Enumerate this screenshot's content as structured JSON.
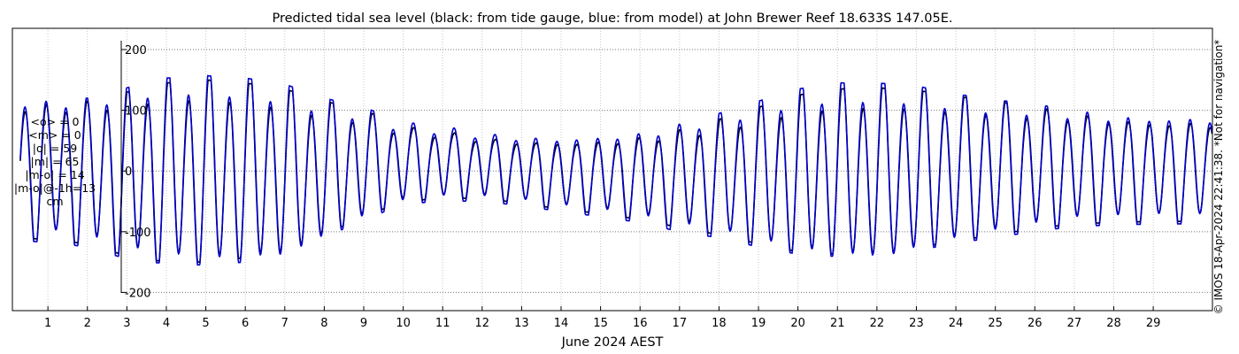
{
  "chart_data": {
    "type": "line",
    "title": "Predicted tidal sea level (black: from tide gauge, blue: from model) at John Brewer Reef 18.633S 147.05E.",
    "xlabel": "June 2024 AEST",
    "ylabel": "",
    "ylim": [
      -230,
      235
    ],
    "xlim": [
      0.1,
      30.5
    ],
    "y_ticks": [
      -200,
      -100,
      0,
      100,
      200
    ],
    "x_ticks": [
      1,
      2,
      3,
      4,
      5,
      6,
      7,
      8,
      9,
      10,
      11,
      12,
      13,
      14,
      15,
      16,
      17,
      18,
      19,
      20,
      21,
      22,
      23,
      24,
      25,
      26,
      27,
      28,
      29
    ],
    "grid": true,
    "series": [
      {
        "name": "black: from tide gauge",
        "color": "#000000"
      },
      {
        "name": "blue: from model",
        "color": "#0000cc"
      }
    ],
    "daily_tidal_range": {
      "day": [
        0.3,
        1,
        2,
        3,
        4,
        5,
        6,
        7,
        8,
        9,
        10,
        11,
        12,
        13,
        14,
        15,
        16,
        17,
        18,
        19,
        20,
        21,
        22,
        23,
        24,
        25,
        26,
        27,
        28,
        29,
        30.5
      ],
      "gauge_max": [
        105,
        108,
        110,
        125,
        140,
        145,
        140,
        130,
        110,
        95,
        70,
        65,
        55,
        50,
        48,
        50,
        55,
        65,
        80,
        100,
        120,
        130,
        132,
        128,
        118,
        110,
        100,
        92,
        85,
        80,
        80
      ],
      "gauge_min": [
        -105,
        -108,
        -115,
        -135,
        -145,
        -145,
        -138,
        -125,
        -100,
        -70,
        -45,
        -40,
        -40,
        -48,
        -58,
        -65,
        -75,
        -88,
        -100,
        -115,
        -128,
        -132,
        -130,
        -122,
        -110,
        -100,
        -90,
        -82,
        -80,
        -78,
        -78
      ],
      "model_max": [
        110,
        112,
        115,
        132,
        148,
        152,
        148,
        138,
        115,
        100,
        75,
        70,
        60,
        55,
        52,
        55,
        60,
        72,
        90,
        110,
        130,
        140,
        140,
        135,
        122,
        112,
        105,
        95,
        88,
        85,
        85
      ],
      "model_min": [
        -110,
        -112,
        -120,
        -140,
        -148,
        -150,
        -145,
        -130,
        -105,
        -75,
        -50,
        -44,
        -45,
        -52,
        -62,
        -70,
        -80,
        -95,
        -105,
        -120,
        -132,
        -136,
        -134,
        -126,
        -114,
        -104,
        -95,
        -86,
        -84,
        -82,
        -82
      ]
    },
    "statistics": [
      "<o> = 0",
      "<m> = 0",
      "|o| = 59",
      "|m| = 65",
      "|m-o| = 14",
      "|m-o|@-1h=13",
      "cm"
    ]
  },
  "credit": "© IMOS 18-Apr-2024 22:41:38. *Not for navigation*"
}
